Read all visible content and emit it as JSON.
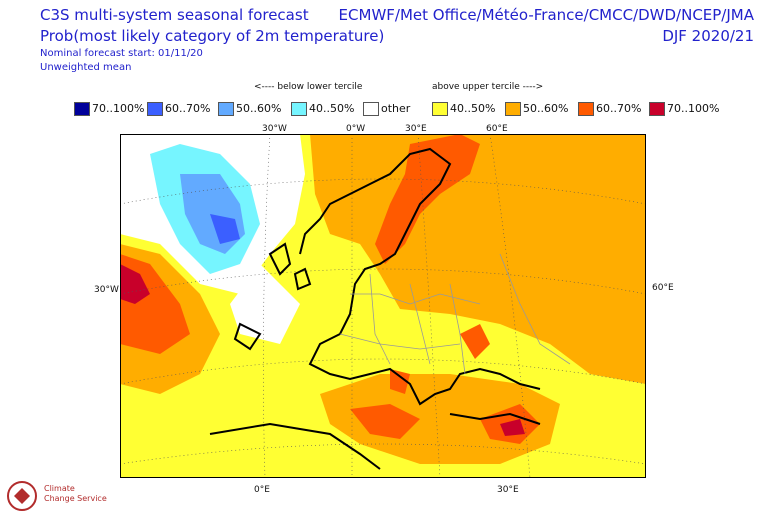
{
  "header": {
    "title": "C3S multi-system seasonal forecast",
    "subtitle": "Prob(most likely category of 2m temperature)",
    "forecast_start": "Nominal forecast start: 01/11/20",
    "mean_type": "Unweighted mean",
    "centres": "ECMWF/Met Office/Météo-France/CMCC/DWD/NCEP/JMA",
    "season": "DJF 2020/21"
  },
  "legend": {
    "below_label": "<---- below lower tercile",
    "above_label": "above upper tercile ---->",
    "items": [
      {
        "label": "70..100%",
        "color": "#00009a"
      },
      {
        "label": "60..70%",
        "color": "#3b5fff"
      },
      {
        "label": "50..60%",
        "color": "#62aaff"
      },
      {
        "label": "40..50%",
        "color": "#76f5ff"
      },
      {
        "label": "other",
        "color": "#ffffff"
      },
      {
        "label": "40..50%",
        "color": "#ffff33"
      },
      {
        "label": "50..60%",
        "color": "#ffad00"
      },
      {
        "label": "60..70%",
        "color": "#ff5a00"
      },
      {
        "label": "70..100%",
        "color": "#c8002a"
      }
    ]
  },
  "axes": {
    "top_lon": [
      "30°W",
      "0°W",
      "30°E",
      "60°E"
    ],
    "bottom_lon": [
      "0°E",
      "30°E"
    ],
    "left_lat": "30°W",
    "right_lat": "60°E"
  },
  "logo": {
    "name": "Climate Change Service",
    "line1": "Climate",
    "line2": "Change Service"
  }
}
